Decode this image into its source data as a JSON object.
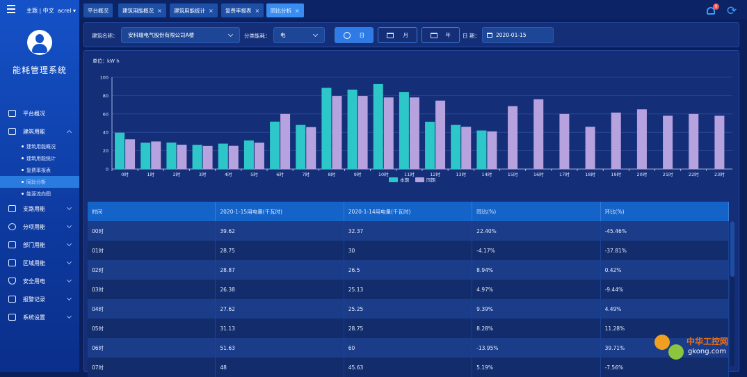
{
  "header": {
    "theme": "主题 | 中文",
    "user": "acrel",
    "app_name": "能耗管理系统",
    "notifications": "0"
  },
  "sidebar": {
    "items": [
      {
        "label": "平台概况",
        "icon": "monitor-icon"
      },
      {
        "label": "建筑用能",
        "icon": "building-icon"
      },
      {
        "label": "支路用能",
        "icon": "branch-icon"
      },
      {
        "label": "分项用能",
        "icon": "gauge-icon"
      },
      {
        "label": "部门用能",
        "icon": "department-icon"
      },
      {
        "label": "区域用能",
        "icon": "area-icon"
      },
      {
        "label": "安全用电",
        "icon": "shield-icon"
      },
      {
        "label": "报警记录",
        "icon": "document-icon"
      },
      {
        "label": "系统设置",
        "icon": "settings-icon"
      }
    ],
    "sub_items": [
      "建筑用能概况",
      "建筑用能统计",
      "复费率报表",
      "同比分析",
      "能源流向图"
    ],
    "active_sub": "同比分析"
  },
  "tabs": [
    {
      "label": "平台概况",
      "closable": false
    },
    {
      "label": "建筑用能概况",
      "closable": true
    },
    {
      "label": "建筑用能统计",
      "closable": true
    },
    {
      "label": "复费率报表",
      "closable": true
    },
    {
      "label": "同比分析",
      "closable": true,
      "active": true
    }
  ],
  "filter": {
    "building_label": "建筑名称：",
    "building_value": "安科瑞电气股份有限公司A楼",
    "category_label": "分类能耗：",
    "category_value": "电",
    "segments": [
      "日",
      "月",
      "年"
    ],
    "date_label": "日 期：",
    "date_value": "2020-01-15"
  },
  "chart_data": {
    "type": "bar",
    "unit": "单位：kW h",
    "categories": [
      "0时",
      "1时",
      "2时",
      "3时",
      "4时",
      "5时",
      "6时",
      "7时",
      "8时",
      "9时",
      "10时",
      "11时",
      "12时",
      "13时",
      "14时",
      "15时",
      "16时",
      "17时",
      "18时",
      "19时",
      "20时",
      "21时",
      "22时",
      "23时"
    ],
    "ylim": [
      0,
      100
    ],
    "yticks": [
      0,
      20,
      40,
      60,
      80,
      100
    ],
    "series": [
      {
        "name": "本期",
        "color": "#2ec7c9",
        "values": [
          39.62,
          28.75,
          28.87,
          26.38,
          27.62,
          31.13,
          51.63,
          48,
          88.5,
          86.5,
          92.5,
          84,
          51.5,
          48,
          42,
          null,
          null,
          null,
          null,
          null,
          null,
          null,
          null,
          null
        ]
      },
      {
        "name": "同期",
        "color": "#b6a2de",
        "values": [
          32.37,
          30,
          26.5,
          25.13,
          25.25,
          28.75,
          60,
          45.63,
          79.5,
          79.5,
          78,
          78,
          74.5,
          46,
          41,
          68.5,
          76,
          60,
          46,
          61.5,
          65,
          58,
          60,
          58
        ]
      }
    ],
    "legend": "bottom-center"
  },
  "table": {
    "columns": [
      "时间",
      "2020-1-15用电量(千瓦时)",
      "2020-1-14用电量(千瓦时)",
      "同比(%)",
      "环比(%)"
    ],
    "rows": [
      [
        "00时",
        "39.62",
        "32.37",
        "22.40%",
        "-45.46%"
      ],
      [
        "01时",
        "28.75",
        "30",
        "-4.17%",
        "-37.81%"
      ],
      [
        "02时",
        "28.87",
        "26.5",
        "8.94%",
        "0.42%"
      ],
      [
        "03时",
        "26.38",
        "25.13",
        "4.97%",
        "-9.44%"
      ],
      [
        "04时",
        "27.62",
        "25.25",
        "9.39%",
        "4.49%"
      ],
      [
        "05时",
        "31.13",
        "28.75",
        "8.28%",
        "11.28%"
      ],
      [
        "06时",
        "51.63",
        "60",
        "-13.95%",
        "39.71%"
      ],
      [
        "07时",
        "48",
        "45.63",
        "5.19%",
        "-7.56%"
      ]
    ]
  },
  "watermark": {
    "title": "中华工控网",
    "subtitle": "gkong.com"
  }
}
